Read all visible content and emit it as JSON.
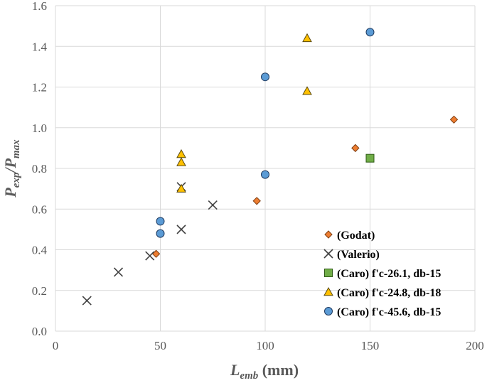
{
  "chart_data": {
    "type": "scatter",
    "xlabel": {
      "main": "L",
      "sub": "emb",
      "unit": " (mm)"
    },
    "ylabel": {
      "num_main": "P",
      "num_sub": "exp",
      "sep": "/",
      "den_main": "P",
      "den_sub": "max"
    },
    "xlim": [
      0,
      200
    ],
    "ylim": [
      0,
      1.6
    ],
    "x_ticks": [
      0,
      50,
      100,
      150,
      200
    ],
    "x_tick_labels": [
      "0",
      "50",
      "100",
      "150",
      "200"
    ],
    "y_ticks": [
      0,
      0.2,
      0.4,
      0.6,
      0.8,
      1.0,
      1.2,
      1.4,
      1.6
    ],
    "y_tick_labels": [
      "0.0",
      "0.2",
      "0.4",
      "0.6",
      "0.8",
      "1.0",
      "1.2",
      "1.4",
      "1.6"
    ],
    "grid": true,
    "legend_position": "bottom-right",
    "series": [
      {
        "name": "(Godat)",
        "marker": "diamond",
        "fill": "#ED7D31",
        "stroke": "#7F3E12",
        "points": [
          [
            48,
            0.38
          ],
          [
            96,
            0.64
          ],
          [
            143,
            0.9
          ],
          [
            190,
            1.04
          ]
        ]
      },
      {
        "name": "(Valerio)",
        "marker": "x",
        "fill": "none",
        "stroke": "#404040",
        "points": [
          [
            15,
            0.15
          ],
          [
            30,
            0.29
          ],
          [
            45,
            0.37
          ],
          [
            60,
            0.5
          ],
          [
            75,
            0.62
          ],
          [
            60,
            0.71
          ]
        ]
      },
      {
        "name": "(Caro) f'c-26.1, db-15",
        "marker": "square",
        "fill": "#70AD47",
        "stroke": "#2E5A16",
        "points": [
          [
            150,
            0.85
          ]
        ]
      },
      {
        "name": "(Caro) f'c-24.8, db-18",
        "marker": "triangle",
        "fill": "#FFC000",
        "stroke": "#5A4A10",
        "points": [
          [
            60,
            0.87
          ],
          [
            60,
            0.83
          ],
          [
            60,
            0.7
          ],
          [
            120,
            1.18
          ],
          [
            120,
            1.44
          ]
        ]
      },
      {
        "name": "(Caro) f'c-45.6, db-15",
        "marker": "circle",
        "fill": "#5B9BD5",
        "stroke": "#1F3A5F",
        "points": [
          [
            50,
            0.54
          ],
          [
            50,
            0.48
          ],
          [
            100,
            0.77
          ],
          [
            100,
            1.25
          ],
          [
            150,
            1.47
          ]
        ]
      }
    ]
  },
  "colors": {
    "grid": "#D9D9D9",
    "axis": "#D9D9D9",
    "tick_text": "#595959",
    "background": "#FFFFFF"
  }
}
